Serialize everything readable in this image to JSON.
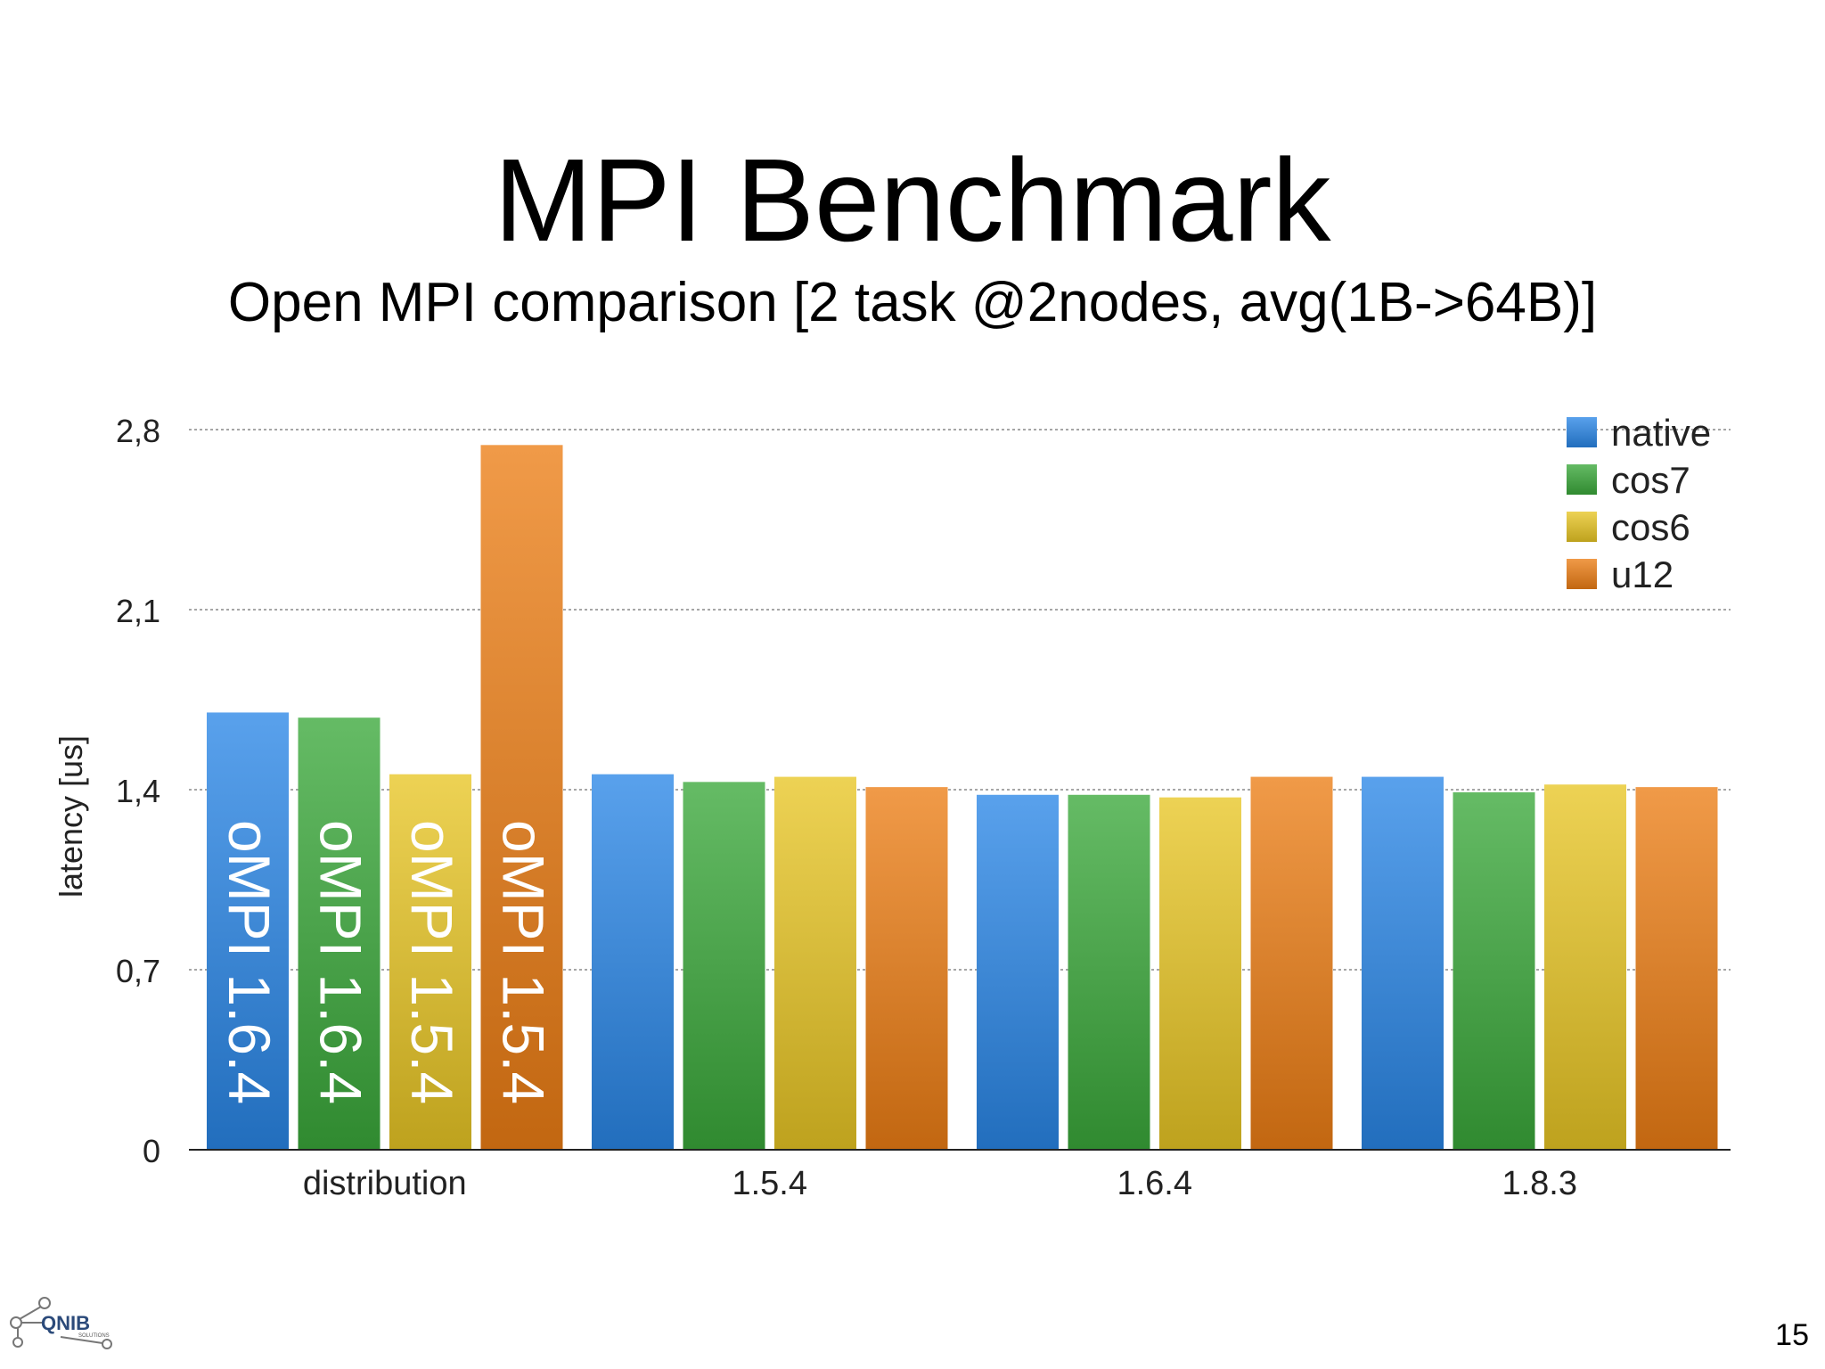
{
  "slide": {
    "title": "MPI Benchmark",
    "subtitle": "Open MPI comparison [2 task @2nodes, avg(1B->64B)]",
    "page_number": "15",
    "logo_text": "QNIB",
    "logo_subtext": "SOLUTIONS"
  },
  "colors": {
    "native": "#2a86e6",
    "cos7": "#3aa83a",
    "cos6": "#e8c524",
    "u12": "#ec7e15"
  },
  "chart_data": {
    "type": "bar",
    "title": "",
    "ylabel": "latency [us]",
    "xlabel": "",
    "ylim": [
      0,
      2.8
    ],
    "yticks": [
      {
        "value": 0,
        "label": "0"
      },
      {
        "value": 0.7,
        "label": "0,7"
      },
      {
        "value": 1.4,
        "label": "1,4"
      },
      {
        "value": 2.1,
        "label": "2,1"
      },
      {
        "value": 2.8,
        "label": "2,8"
      }
    ],
    "grid": true,
    "legend": "top-right",
    "categories": [
      "distribution",
      "1.5.4",
      "1.6.4",
      "1.8.3"
    ],
    "series": [
      {
        "name": "native",
        "values": [
          1.7,
          1.46,
          1.38,
          1.45
        ]
      },
      {
        "name": "cos7",
        "values": [
          1.68,
          1.43,
          1.38,
          1.39
        ]
      },
      {
        "name": "cos6",
        "values": [
          1.46,
          1.45,
          1.37,
          1.42
        ]
      },
      {
        "name": "u12",
        "values": [
          2.74,
          1.41,
          1.45,
          1.41
        ]
      }
    ],
    "bar_annotations": [
      {
        "category": 0,
        "series": 0,
        "text": "oMPI 1.6.4"
      },
      {
        "category": 0,
        "series": 1,
        "text": "oMPI 1.6.4"
      },
      {
        "category": 0,
        "series": 2,
        "text": "oMPI 1.5.4"
      },
      {
        "category": 0,
        "series": 3,
        "text": "oMPI 1.5.4"
      }
    ]
  }
}
